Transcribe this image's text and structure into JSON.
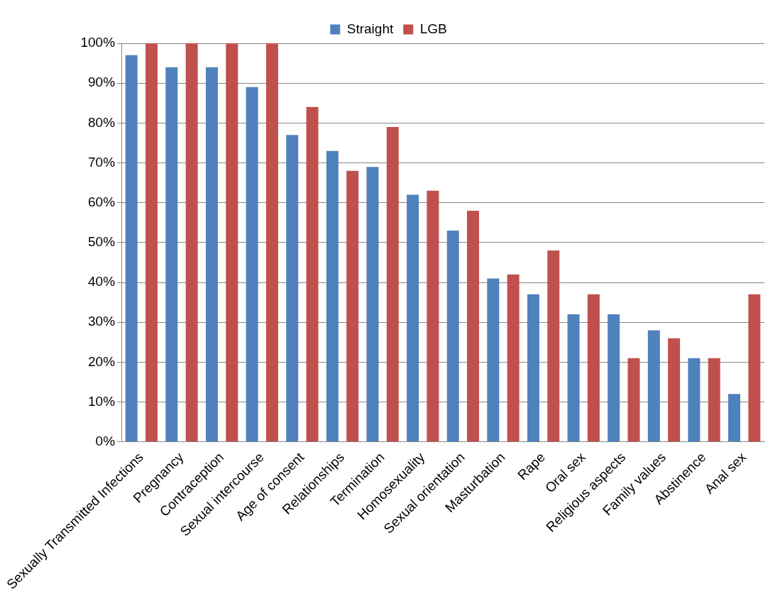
{
  "chart_data": {
    "type": "bar",
    "categories": [
      "Sexually Transmitted Infections",
      "Pregnancy",
      "Contraception",
      "Sexual intercourse",
      "Age of consent",
      "Relationships",
      "Termination",
      "Homosexuality",
      "Sexual orientation",
      "Masturbation",
      "Rape",
      "Oral sex",
      "Religious aspects",
      "Family values",
      "Abstinence",
      "Anal sex"
    ],
    "series": [
      {
        "name": "Straight",
        "color": "#4f81bd",
        "values": [
          97,
          94,
          94,
          89,
          77,
          73,
          69,
          62,
          53,
          41,
          37,
          32,
          32,
          28,
          21,
          12
        ]
      },
      {
        "name": "LGB",
        "color": "#c0504d",
        "values": [
          100,
          100,
          100,
          100,
          84,
          68,
          79,
          63,
          58,
          42,
          48,
          37,
          21,
          26,
          21,
          37
        ]
      }
    ],
    "ylim": [
      0,
      100
    ],
    "yticks": [
      {
        "value": 0,
        "label": "0%"
      },
      {
        "value": 10,
        "label": "10%"
      },
      {
        "value": 20,
        "label": "20%"
      },
      {
        "value": 30,
        "label": "30%"
      },
      {
        "value": 40,
        "label": "40%"
      },
      {
        "value": 50,
        "label": "50%"
      },
      {
        "value": 60,
        "label": "60%"
      },
      {
        "value": 70,
        "label": "70%"
      },
      {
        "value": 80,
        "label": "80%"
      },
      {
        "value": 90,
        "label": "90%"
      },
      {
        "value": 100,
        "label": "100%"
      }
    ],
    "grid": "y",
    "legend": "top"
  }
}
